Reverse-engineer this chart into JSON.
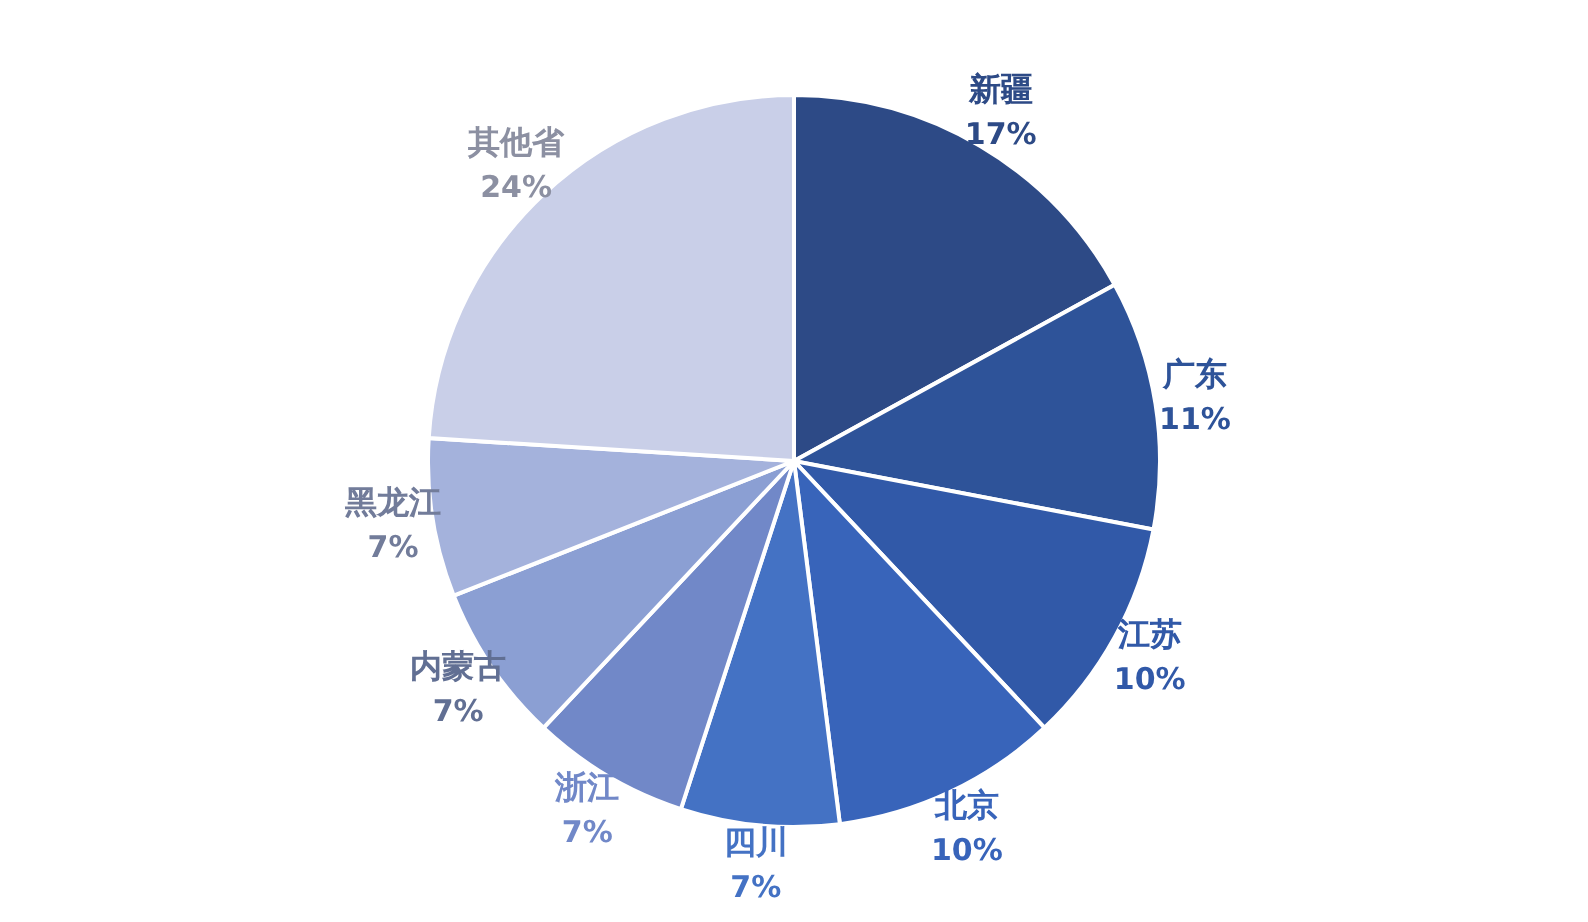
{
  "chart_data": {
    "type": "pie",
    "categories": [
      "新疆",
      "广东",
      "江苏",
      "北京",
      "四川",
      "浙江",
      "内蒙古",
      "黑龙江",
      "其他省"
    ],
    "values": [
      17,
      11,
      10,
      10,
      7,
      7,
      7,
      7,
      24
    ],
    "value_labels": [
      "17%",
      "11%",
      "10%",
      "10%",
      "7%",
      "7%",
      "7%",
      "7%",
      "24%"
    ],
    "colors": [
      "#2d4a86",
      "#2e5399",
      "#3159a8",
      "#3864ba",
      "#4472c4",
      "#7188c8",
      "#8b9fd3",
      "#a4b2dc",
      "#c9cfe8"
    ],
    "legend": false
  }
}
